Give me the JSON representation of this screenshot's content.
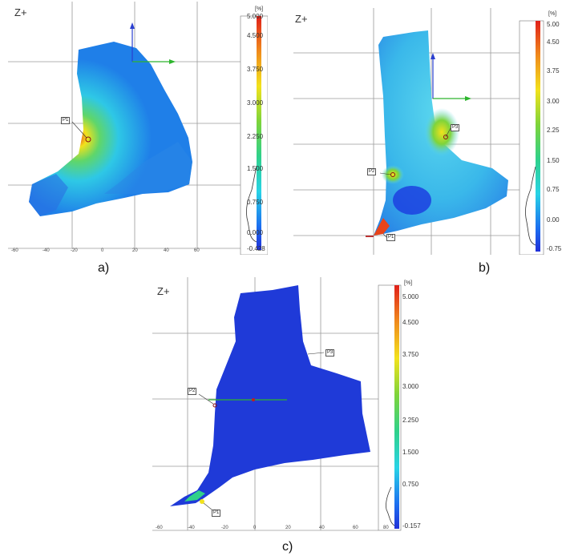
{
  "panels": [
    {
      "id": "a",
      "caption": "a)",
      "view_label": "Z+",
      "colorbar_unit": "[%]",
      "colorbar_ticks": [
        "5.000",
        "4.500",
        "3.750",
        "3.000",
        "2.250",
        "1.500",
        "0.750",
        "0.000",
        "-0.428"
      ],
      "x_ticks": [
        "-60",
        "-40",
        "-20",
        "0",
        "20",
        "40",
        "60"
      ],
      "point_tags": [
        "P1"
      ]
    },
    {
      "id": "b",
      "caption": "b)",
      "view_label": "Z+",
      "colorbar_unit": "[%]",
      "colorbar_ticks": [
        "5.00",
        "4.50",
        "3.75",
        "3.00",
        "2.25",
        "1.50",
        "0.75",
        "0.00",
        "-0.75"
      ],
      "x_ticks": [],
      "point_tags": [
        "P3",
        "P2",
        "P1"
      ]
    },
    {
      "id": "c",
      "caption": "c)",
      "view_label": "Z+",
      "colorbar_unit": "[%]",
      "colorbar_ticks": [
        "5.000",
        "4.500",
        "3.750",
        "3.000",
        "2.250",
        "1.500",
        "0.750",
        "-0.157"
      ],
      "x_ticks": [
        "-60",
        "-40",
        "-20",
        "0",
        "20",
        "40",
        "60",
        "80"
      ],
      "point_tags": [
        "P3",
        "P2",
        "P1"
      ]
    }
  ],
  "colors": {
    "grid": "#999999",
    "axis_x": "#2db52d",
    "axis_z": "#2a3fd0",
    "surface_low": "#1c3fe0",
    "surface_mid": "#2ec8e6",
    "surface_high": "#f2e21c",
    "surface_peak": "#e8441a"
  }
}
